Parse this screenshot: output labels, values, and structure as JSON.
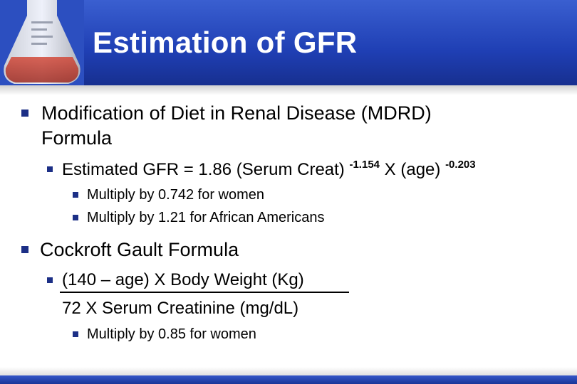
{
  "slide": {
    "title": "Estimation of GFR",
    "section1": {
      "heading_line1": "Modification of Diet in Renal Disease (MDRD)",
      "heading_line2": "Formula",
      "formula": {
        "prefix": "Estimated GFR = 1.86 (Serum Creat) ",
        "exp1": "-1.154",
        "middle": " X (age) ",
        "exp2": "-0.203"
      },
      "notes": [
        "Multiply by 0.742 for women",
        "Multiply by 1.21 for African Americans"
      ]
    },
    "section2": {
      "heading": "Cockroft Gault Formula",
      "numerator": "(140 – age) X Body Weight (Kg)",
      "denominator": "72 X Serum Creatinine (mg/dL)",
      "notes": [
        "Multiply by 0.85 for women"
      ]
    }
  },
  "colors": {
    "header": "#1f3fb4",
    "bullet": "#1c2f86",
    "title_text": "#ffffff"
  }
}
